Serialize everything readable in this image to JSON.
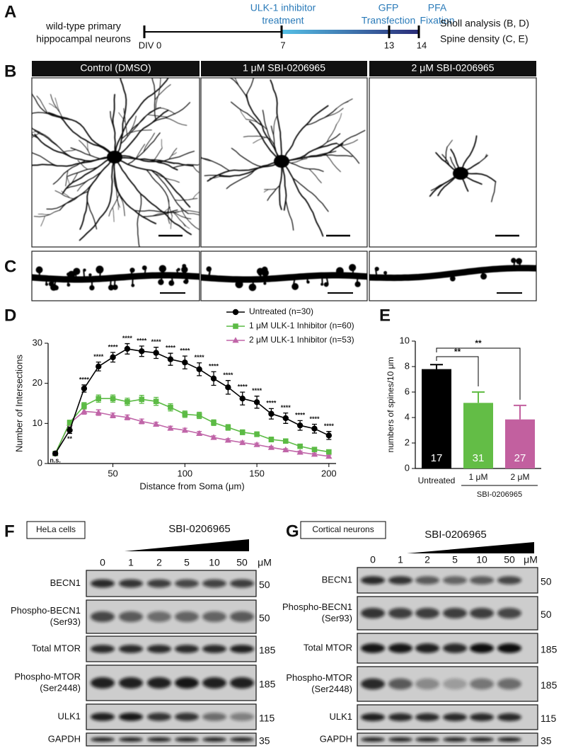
{
  "panel_labels": [
    "A",
    "B",
    "C",
    "D",
    "E",
    "F",
    "G"
  ],
  "panel_a": {
    "cells": [
      "wild-type primary",
      "hippocampal neurons"
    ],
    "timepoints": [
      "DIV 0",
      "7",
      "13",
      "14"
    ],
    "treatment": [
      "ULK-1 inhibitor",
      "treatment"
    ],
    "transfection": [
      "GFP",
      "Transfection"
    ],
    "fixation": [
      "PFA",
      "Fixation"
    ],
    "analyses": [
      "Sholl analysis (B, D)",
      "Spine density (C, E)"
    ]
  },
  "panel_b": {
    "conditions": [
      "Control (DMSO)",
      "1 μM SBI-0206965",
      "2 μM SBI-0206965"
    ]
  },
  "chart_data": [
    {
      "type": "line",
      "x": [
        10,
        20,
        30,
        40,
        50,
        60,
        70,
        80,
        90,
        100,
        110,
        120,
        130,
        140,
        150,
        160,
        170,
        180,
        190,
        200
      ],
      "xlim": [
        5,
        205
      ],
      "xticks": [
        50,
        100,
        150,
        200
      ],
      "ylim": [
        0,
        30
      ],
      "yticks": [
        0,
        10,
        20,
        30
      ],
      "xlabel": "Distance from Soma (μm)",
      "ylabel": "Number of Intersections",
      "series": [
        {
          "name": "Untreated (n=30)",
          "color": "#000000",
          "marker": "circle",
          "values": [
            2.5,
            8.3,
            18.7,
            24.2,
            26.5,
            28.6,
            28.0,
            27.6,
            26.0,
            25.2,
            23.5,
            21.2,
            19.0,
            16.2,
            15.3,
            12.4,
            11.3,
            9.5,
            8.7,
            7.0
          ],
          "errors": [
            0.4,
            0.8,
            0.9,
            1.1,
            1.2,
            1.3,
            1.3,
            1.4,
            1.5,
            1.6,
            1.6,
            1.7,
            1.7,
            1.6,
            1.5,
            1.3,
            1.3,
            1.2,
            1.1,
            1.0
          ]
        },
        {
          "name": "1 μM ULK-1 Inhibitor (n=60)",
          "color": "#5cbb45",
          "marker": "square",
          "values": [
            2.5,
            10.2,
            14.4,
            16.2,
            16.2,
            15.4,
            16.0,
            15.5,
            14.0,
            12.3,
            12.0,
            10.2,
            9.0,
            7.8,
            7.3,
            6.0,
            5.6,
            4.3,
            3.5,
            2.9
          ],
          "errors": [
            0.3,
            0.6,
            0.8,
            0.9,
            0.9,
            0.9,
            1.0,
            1.0,
            0.9,
            0.8,
            0.8,
            0.7,
            0.7,
            0.6,
            0.6,
            0.6,
            0.5,
            0.5,
            0.4,
            0.4
          ]
        },
        {
          "name": "2 μM ULK-1 Inhibitor (n=53)",
          "color": "#c065a8",
          "marker": "triangle",
          "values": [
            2.5,
            10.0,
            13.0,
            12.7,
            12.0,
            11.5,
            10.5,
            9.8,
            8.8,
            8.3,
            7.5,
            6.5,
            5.8,
            5.2,
            4.7,
            4.0,
            3.4,
            2.8,
            2.3,
            1.8
          ],
          "errors": [
            0.3,
            0.5,
            0.7,
            0.7,
            0.6,
            0.6,
            0.6,
            0.5,
            0.5,
            0.5,
            0.5,
            0.4,
            0.4,
            0.4,
            0.4,
            0.3,
            0.3,
            0.3,
            0.3,
            0.3
          ]
        }
      ],
      "significance": [
        "n.s.",
        "**",
        "****",
        "****",
        "****",
        "****",
        "****",
        "****",
        "****",
        "****",
        "****",
        "****",
        "****",
        "****",
        "****",
        "****",
        "****",
        "****",
        "****",
        "****"
      ]
    },
    {
      "type": "bar",
      "categories": [
        "Untreated",
        "1 μM",
        "2 μM"
      ],
      "group_label": "SBI-0206965",
      "values": [
        7.8,
        5.15,
        3.85
      ],
      "errors": [
        0.35,
        0.85,
        1.1
      ],
      "colors": [
        "#000000",
        "#63bd46",
        "#c2609f"
      ],
      "bar_labels": [
        "17",
        "31",
        "27"
      ],
      "ylabel": "numbers of spines/10 μm",
      "ylim": [
        0,
        10
      ],
      "yticks": [
        0,
        2,
        4,
        6,
        8,
        10
      ],
      "significance": [
        "**",
        "**"
      ]
    }
  ],
  "panel_f": {
    "cell_type": "HeLa cells",
    "drug": "SBI-0206965",
    "doses": [
      "0",
      "1",
      "2",
      "5",
      "10",
      "50"
    ],
    "dose_unit": "μM",
    "rows": [
      {
        "label": [
          "BECN1"
        ],
        "mw": "50"
      },
      {
        "label": [
          "Phospho-BECN1",
          "(Ser93)"
        ],
        "mw": "50"
      },
      {
        "label": [
          "Total MTOR"
        ],
        "mw": "185"
      },
      {
        "label": [
          "Phospho-MTOR",
          "(Ser2448)"
        ],
        "mw": "185"
      },
      {
        "label": [
          "ULK1"
        ],
        "mw": "115"
      },
      {
        "label": [
          "GAPDH"
        ],
        "mw": "35"
      }
    ]
  },
  "panel_g": {
    "cell_type": "Cortical neurons",
    "drug": "SBI-0206965",
    "doses": [
      "0",
      "1",
      "2",
      "5",
      "10",
      "50"
    ],
    "dose_unit": "μM",
    "rows": [
      {
        "label": [
          "BECN1"
        ],
        "mw": "50"
      },
      {
        "label": [
          "Phospho-BECN1",
          "(Ser93)"
        ],
        "mw": "50"
      },
      {
        "label": [
          "Total MTOR"
        ],
        "mw": "185"
      },
      {
        "label": [
          "Phospho-MTOR",
          "(Ser2448)"
        ],
        "mw": "185"
      },
      {
        "label": [
          "ULK1"
        ],
        "mw": "115"
      },
      {
        "label": [
          "GAPDH"
        ],
        "mw": "35"
      }
    ]
  }
}
